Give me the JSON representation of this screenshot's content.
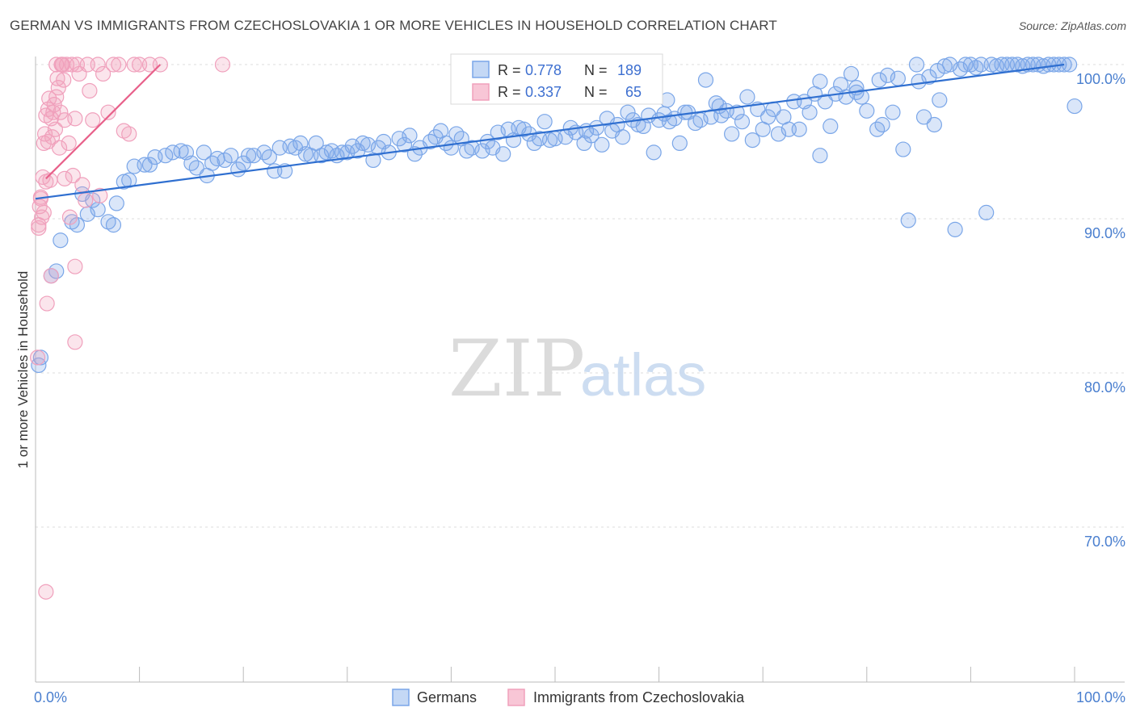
{
  "header": {
    "title": "GERMAN VS IMMIGRANTS FROM CZECHOSLOVAKIA 1 OR MORE VEHICLES IN HOUSEHOLD CORRELATION CHART",
    "source": "Source: ZipAtlas.com"
  },
  "watermark": {
    "zip": "ZIP",
    "atlas": "atlas"
  },
  "stats": [
    {
      "r_label": "R =",
      "r": "0.778",
      "n_label": "N =",
      "n": "189",
      "color": "#7aa6e8"
    },
    {
      "r_label": "R =",
      "r": "0.337",
      "n_label": "N =",
      "n": "65",
      "color": "#f0a0bc"
    }
  ],
  "chart_data": {
    "type": "scatter",
    "title": "GERMAN VS IMMIGRANTS FROM CZECHOSLOVAKIA 1 OR MORE VEHICLES IN HOUSEHOLD CORRELATION CHART",
    "xlabel": "",
    "ylabel": "1 or more Vehicles in Household",
    "xlim": [
      0,
      100
    ],
    "ylim": [
      60.5,
      101.5
    ],
    "x_tick_labels": [
      "0.0%",
      "100.0%"
    ],
    "y_ticks": [
      {
        "value": 100,
        "label": "100.0%"
      },
      {
        "value": 90,
        "label": "90.0%"
      },
      {
        "value": 80,
        "label": "80.0%"
      },
      {
        "value": 70,
        "label": "70.0%"
      }
    ],
    "grid": true,
    "legend": [
      "Germans",
      "Immigrants from Czechoslovakia"
    ],
    "series": [
      {
        "name": "Germans",
        "color": "#7aa6e8",
        "line_color": "#2f6fd0",
        "trend": {
          "x0": 0,
          "y0": 91.3,
          "x1": 99,
          "y1": 100.0
        },
        "points": [
          [
            0.3,
            80.5
          ],
          [
            0.5,
            81.0
          ],
          [
            1.5,
            86.3
          ],
          [
            2.0,
            86.6
          ],
          [
            2.4,
            88.6
          ],
          [
            3.5,
            89.8
          ],
          [
            4.0,
            89.6
          ],
          [
            4.5,
            91.6
          ],
          [
            5.0,
            90.3
          ],
          [
            5.5,
            91.2
          ],
          [
            6.0,
            90.6
          ],
          [
            7.0,
            89.8
          ],
          [
            7.5,
            89.6
          ],
          [
            7.8,
            91.0
          ],
          [
            8.5,
            92.4
          ],
          [
            9.0,
            92.5
          ],
          [
            9.5,
            93.4
          ],
          [
            10.5,
            93.5
          ],
          [
            11.0,
            93.5
          ],
          [
            11.5,
            94.0
          ],
          [
            12.5,
            94.1
          ],
          [
            13.2,
            94.3
          ],
          [
            14.0,
            94.4
          ],
          [
            14.5,
            94.3
          ],
          [
            15.0,
            93.6
          ],
          [
            15.5,
            93.3
          ],
          [
            16.2,
            94.3
          ],
          [
            16.5,
            92.8
          ],
          [
            17.0,
            93.6
          ],
          [
            17.5,
            93.9
          ],
          [
            18.2,
            93.8
          ],
          [
            18.8,
            94.1
          ],
          [
            19.5,
            93.2
          ],
          [
            20.0,
            93.6
          ],
          [
            20.5,
            94.1
          ],
          [
            21.0,
            94.1
          ],
          [
            22.0,
            94.3
          ],
          [
            23.0,
            93.1
          ],
          [
            23.5,
            94.6
          ],
          [
            24.0,
            93.1
          ],
          [
            24.5,
            94.7
          ],
          [
            25.0,
            94.6
          ],
          [
            25.5,
            94.9
          ],
          [
            26.0,
            94.2
          ],
          [
            27.0,
            94.9
          ],
          [
            27.5,
            94.1
          ],
          [
            28.0,
            94.3
          ],
          [
            28.5,
            94.4
          ],
          [
            29.0,
            94.1
          ],
          [
            29.5,
            94.3
          ],
          [
            30.5,
            94.7
          ],
          [
            31.0,
            94.4
          ],
          [
            32.0,
            94.8
          ],
          [
            32.5,
            93.8
          ],
          [
            33.0,
            94.6
          ],
          [
            34.0,
            94.3
          ],
          [
            35.0,
            95.2
          ],
          [
            35.5,
            94.8
          ],
          [
            36.5,
            94.2
          ],
          [
            37.0,
            94.6
          ],
          [
            38.0,
            95.0
          ],
          [
            38.5,
            95.3
          ],
          [
            39.5,
            94.9
          ],
          [
            40.0,
            94.6
          ],
          [
            40.5,
            95.5
          ],
          [
            41.5,
            94.4
          ],
          [
            42.0,
            94.6
          ],
          [
            43.0,
            94.4
          ],
          [
            43.5,
            95.0
          ],
          [
            44.0,
            94.6
          ],
          [
            45.0,
            94.2
          ],
          [
            45.5,
            95.8
          ],
          [
            46.0,
            95.1
          ],
          [
            47.0,
            95.8
          ],
          [
            47.5,
            95.5
          ],
          [
            48.0,
            94.9
          ],
          [
            48.5,
            95.2
          ],
          [
            49.5,
            95.1
          ],
          [
            50.0,
            95.2
          ],
          [
            51.0,
            95.3
          ],
          [
            51.5,
            95.9
          ],
          [
            52.0,
            95.6
          ],
          [
            53.0,
            95.7
          ],
          [
            53.5,
            95.4
          ],
          [
            54.0,
            95.9
          ],
          [
            55.0,
            96.5
          ],
          [
            55.5,
            95.7
          ],
          [
            56.0,
            96.1
          ],
          [
            57.0,
            96.9
          ],
          [
            57.5,
            96.4
          ],
          [
            58.0,
            96.1
          ],
          [
            59.0,
            96.7
          ],
          [
            59.5,
            94.3
          ],
          [
            60.0,
            96.4
          ],
          [
            61.0,
            96.3
          ],
          [
            61.5,
            96.5
          ],
          [
            62.0,
            94.9
          ],
          [
            62.8,
            96.9
          ],
          [
            63.5,
            96.2
          ],
          [
            64.0,
            96.4
          ],
          [
            65.0,
            96.6
          ],
          [
            65.5,
            97.5
          ],
          [
            66.0,
            96.7
          ],
          [
            66.5,
            97.0
          ],
          [
            67.5,
            96.9
          ],
          [
            68.0,
            96.3
          ],
          [
            68.5,
            97.9
          ],
          [
            69.0,
            95.1
          ],
          [
            69.5,
            97.1
          ],
          [
            70.0,
            95.8
          ],
          [
            71.0,
            97.1
          ],
          [
            71.5,
            95.5
          ],
          [
            72.0,
            96.6
          ],
          [
            72.5,
            95.8
          ],
          [
            73.0,
            97.6
          ],
          [
            74.0,
            97.6
          ],
          [
            74.5,
            96.9
          ],
          [
            75.0,
            98.1
          ],
          [
            75.5,
            98.9
          ],
          [
            76.0,
            97.6
          ],
          [
            76.5,
            96.0
          ],
          [
            77.0,
            98.1
          ],
          [
            77.5,
            98.7
          ],
          [
            78.0,
            97.9
          ],
          [
            78.5,
            99.4
          ],
          [
            79.0,
            98.2
          ],
          [
            79.5,
            97.9
          ],
          [
            80.0,
            97.0
          ],
          [
            81.0,
            95.8
          ],
          [
            81.5,
            96.1
          ],
          [
            82.0,
            99.3
          ],
          [
            82.5,
            96.9
          ],
          [
            83.0,
            99.1
          ],
          [
            83.5,
            94.5
          ],
          [
            84.0,
            89.9
          ],
          [
            85.0,
            98.9
          ],
          [
            85.5,
            96.6
          ],
          [
            86.0,
            99.2
          ],
          [
            86.5,
            96.1
          ],
          [
            87.0,
            97.7
          ],
          [
            87.5,
            99.9
          ],
          [
            88.0,
            100.0
          ],
          [
            88.5,
            89.3
          ],
          [
            89.0,
            99.7
          ],
          [
            89.5,
            100.0
          ],
          [
            90.0,
            100.0
          ],
          [
            90.5,
            99.8
          ],
          [
            91.0,
            100.0
          ],
          [
            91.5,
            90.4
          ],
          [
            92.0,
            100.0
          ],
          [
            92.5,
            99.9
          ],
          [
            93.0,
            100.0
          ],
          [
            93.5,
            100.0
          ],
          [
            94.0,
            100.0
          ],
          [
            94.5,
            100.0
          ],
          [
            95.0,
            99.9
          ],
          [
            95.5,
            100.0
          ],
          [
            96.0,
            100.0
          ],
          [
            96.5,
            100.0
          ],
          [
            97.0,
            99.9
          ],
          [
            97.5,
            100.0
          ],
          [
            98.0,
            100.0
          ],
          [
            98.5,
            100.0
          ],
          [
            99.0,
            100.0
          ],
          [
            99.5,
            100.0
          ],
          [
            100.0,
            97.3
          ],
          [
            75.5,
            94.1
          ],
          [
            64.5,
            99.0
          ],
          [
            58.5,
            96.0
          ],
          [
            60.5,
            96.8
          ],
          [
            56.5,
            95.3
          ],
          [
            54.5,
            94.8
          ],
          [
            67.0,
            95.5
          ],
          [
            70.5,
            96.6
          ],
          [
            73.5,
            95.8
          ],
          [
            81.2,
            99.0
          ],
          [
            84.8,
            100.0
          ],
          [
            86.8,
            99.6
          ],
          [
            79.0,
            98.5
          ],
          [
            65.8,
            97.3
          ],
          [
            60.8,
            97.7
          ],
          [
            62.5,
            96.9
          ],
          [
            52.8,
            94.9
          ],
          [
            49.0,
            96.3
          ],
          [
            46.5,
            95.9
          ],
          [
            44.5,
            95.6
          ],
          [
            41.0,
            95.2
          ],
          [
            39.0,
            95.7
          ],
          [
            36.0,
            95.4
          ],
          [
            33.5,
            95.0
          ],
          [
            31.5,
            94.9
          ],
          [
            30.0,
            94.3
          ],
          [
            26.5,
            94.1
          ],
          [
            22.5,
            94.0
          ]
        ]
      },
      {
        "name": "Immigrants from Czechoslovakia",
        "color": "#f0a0bc",
        "line_color": "#e8608a",
        "trend": {
          "x0": 1,
          "y0": 92.6,
          "x1": 12,
          "y1": 100.0
        },
        "points": [
          [
            0.2,
            81.0
          ],
          [
            0.3,
            89.6
          ],
          [
            0.4,
            90.8
          ],
          [
            0.5,
            91.3
          ],
          [
            0.6,
            90.1
          ],
          [
            0.7,
            92.7
          ],
          [
            0.8,
            94.9
          ],
          [
            0.9,
            95.5
          ],
          [
            1.0,
            96.7
          ],
          [
            1.0,
            65.8
          ],
          [
            1.1,
            84.5
          ],
          [
            1.2,
            97.1
          ],
          [
            1.3,
            97.8
          ],
          [
            1.4,
            92.5
          ],
          [
            1.5,
            86.3
          ],
          [
            1.6,
            95.3
          ],
          [
            1.7,
            96.9
          ],
          [
            1.8,
            97.4
          ],
          [
            1.9,
            95.8
          ],
          [
            2.0,
            100.0
          ],
          [
            2.1,
            99.1
          ],
          [
            2.2,
            98.5
          ],
          [
            2.3,
            94.6
          ],
          [
            2.4,
            96.9
          ],
          [
            2.5,
            100.0
          ],
          [
            2.6,
            100.0
          ],
          [
            2.7,
            99.0
          ],
          [
            2.8,
            92.6
          ],
          [
            3.0,
            100.0
          ],
          [
            3.2,
            94.9
          ],
          [
            3.3,
            90.1
          ],
          [
            3.5,
            100.0
          ],
          [
            3.6,
            92.8
          ],
          [
            3.8,
            96.5
          ],
          [
            4.0,
            100.0
          ],
          [
            4.2,
            99.4
          ],
          [
            4.5,
            92.2
          ],
          [
            5.0,
            100.0
          ],
          [
            5.2,
            98.3
          ],
          [
            5.5,
            96.4
          ],
          [
            6.0,
            100.0
          ],
          [
            6.2,
            91.5
          ],
          [
            6.5,
            99.4
          ],
          [
            7.0,
            96.9
          ],
          [
            7.5,
            100.0
          ],
          [
            8.0,
            100.0
          ],
          [
            8.5,
            95.7
          ],
          [
            9.0,
            95.5
          ],
          [
            9.5,
            100.0
          ],
          [
            10.0,
            100.0
          ],
          [
            11.0,
            100.0
          ],
          [
            12.0,
            100.0
          ],
          [
            18.0,
            100.0
          ],
          [
            1.5,
            96.5
          ],
          [
            2.0,
            97.9
          ],
          [
            3.8,
            86.9
          ],
          [
            3.8,
            82.0
          ],
          [
            0.5,
            91.4
          ],
          [
            0.8,
            90.4
          ],
          [
            1.2,
            95.0
          ],
          [
            2.8,
            96.4
          ],
          [
            4.8,
            91.2
          ],
          [
            0.3,
            89.4
          ],
          [
            1.0,
            92.4
          ],
          [
            2.5,
            100.0
          ]
        ]
      }
    ]
  }
}
